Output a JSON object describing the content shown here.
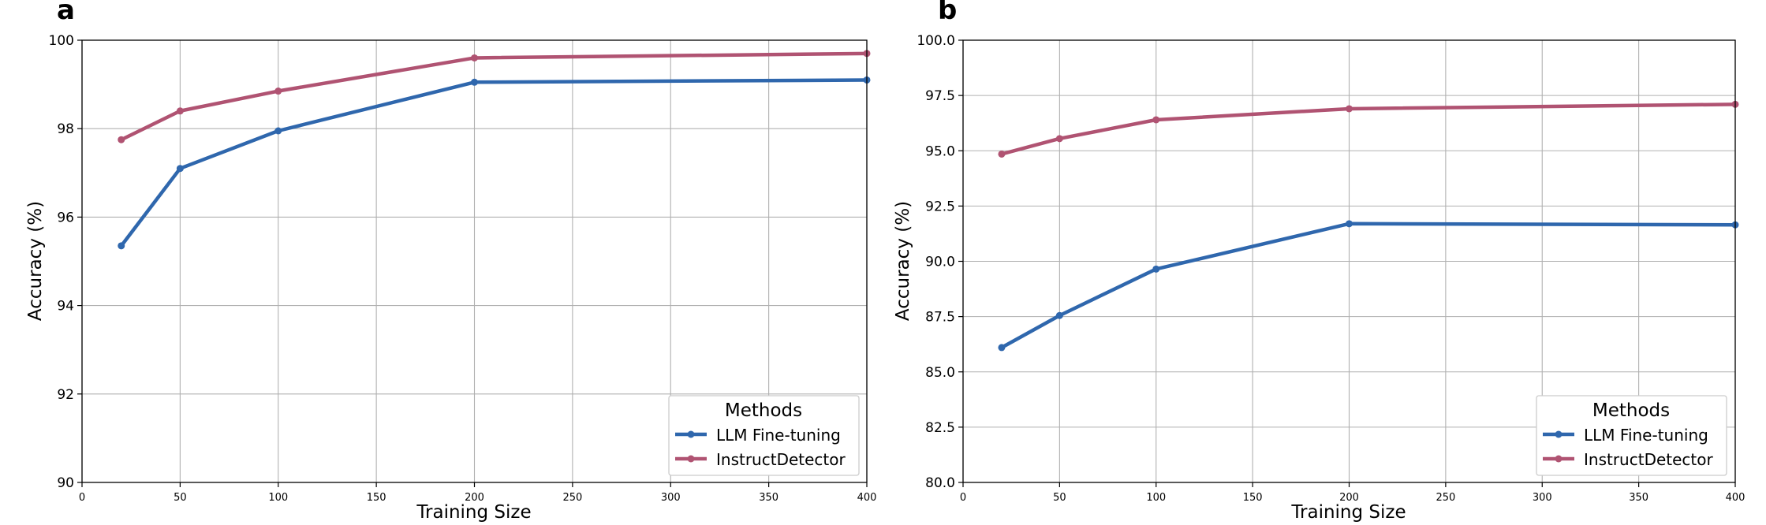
{
  "chart_data": [
    {
      "panel": "a",
      "type": "line",
      "xlabel": "Training Size",
      "ylabel": "Accuracy (%)",
      "xlim": [
        0,
        400
      ],
      "ylim": [
        90,
        100
      ],
      "xticks": [
        "0",
        "50",
        "100",
        "150",
        "200",
        "250",
        "300",
        "350",
        "400"
      ],
      "yticks": [
        "90",
        "92",
        "94",
        "96",
        "98",
        "100"
      ],
      "grid": true,
      "legend_title": "Methods",
      "legend_position": "bottom-right",
      "x": [
        20,
        50,
        100,
        200,
        400
      ],
      "series": [
        {
          "name": "LLM Fine-tuning",
          "color": "#2f67ad",
          "values": [
            95.35,
            97.1,
            97.95,
            99.05,
            99.1
          ]
        },
        {
          "name": "InstructDetector",
          "color": "#b05372",
          "values": [
            97.75,
            98.4,
            98.85,
            99.6,
            99.7
          ]
        }
      ]
    },
    {
      "panel": "b",
      "type": "line",
      "xlabel": "Training Size",
      "ylabel": "Accuracy (%)",
      "xlim": [
        0,
        400
      ],
      "ylim": [
        80,
        100
      ],
      "xticks": [
        "0",
        "50",
        "100",
        "150",
        "200",
        "250",
        "300",
        "350",
        "400"
      ],
      "yticks": [
        "80.0",
        "82.5",
        "85.0",
        "87.5",
        "90.0",
        "92.5",
        "95.0",
        "97.5",
        "100.0"
      ],
      "grid": true,
      "legend_title": "Methods",
      "legend_position": "bottom-right",
      "x": [
        20,
        50,
        100,
        200,
        400
      ],
      "series": [
        {
          "name": "LLM Fine-tuning",
          "color": "#2f67ad",
          "values": [
            86.1,
            87.55,
            89.65,
            91.7,
            91.65
          ]
        },
        {
          "name": "InstructDetector",
          "color": "#b05372",
          "values": [
            94.85,
            95.55,
            96.4,
            96.9,
            97.1
          ]
        }
      ]
    }
  ]
}
